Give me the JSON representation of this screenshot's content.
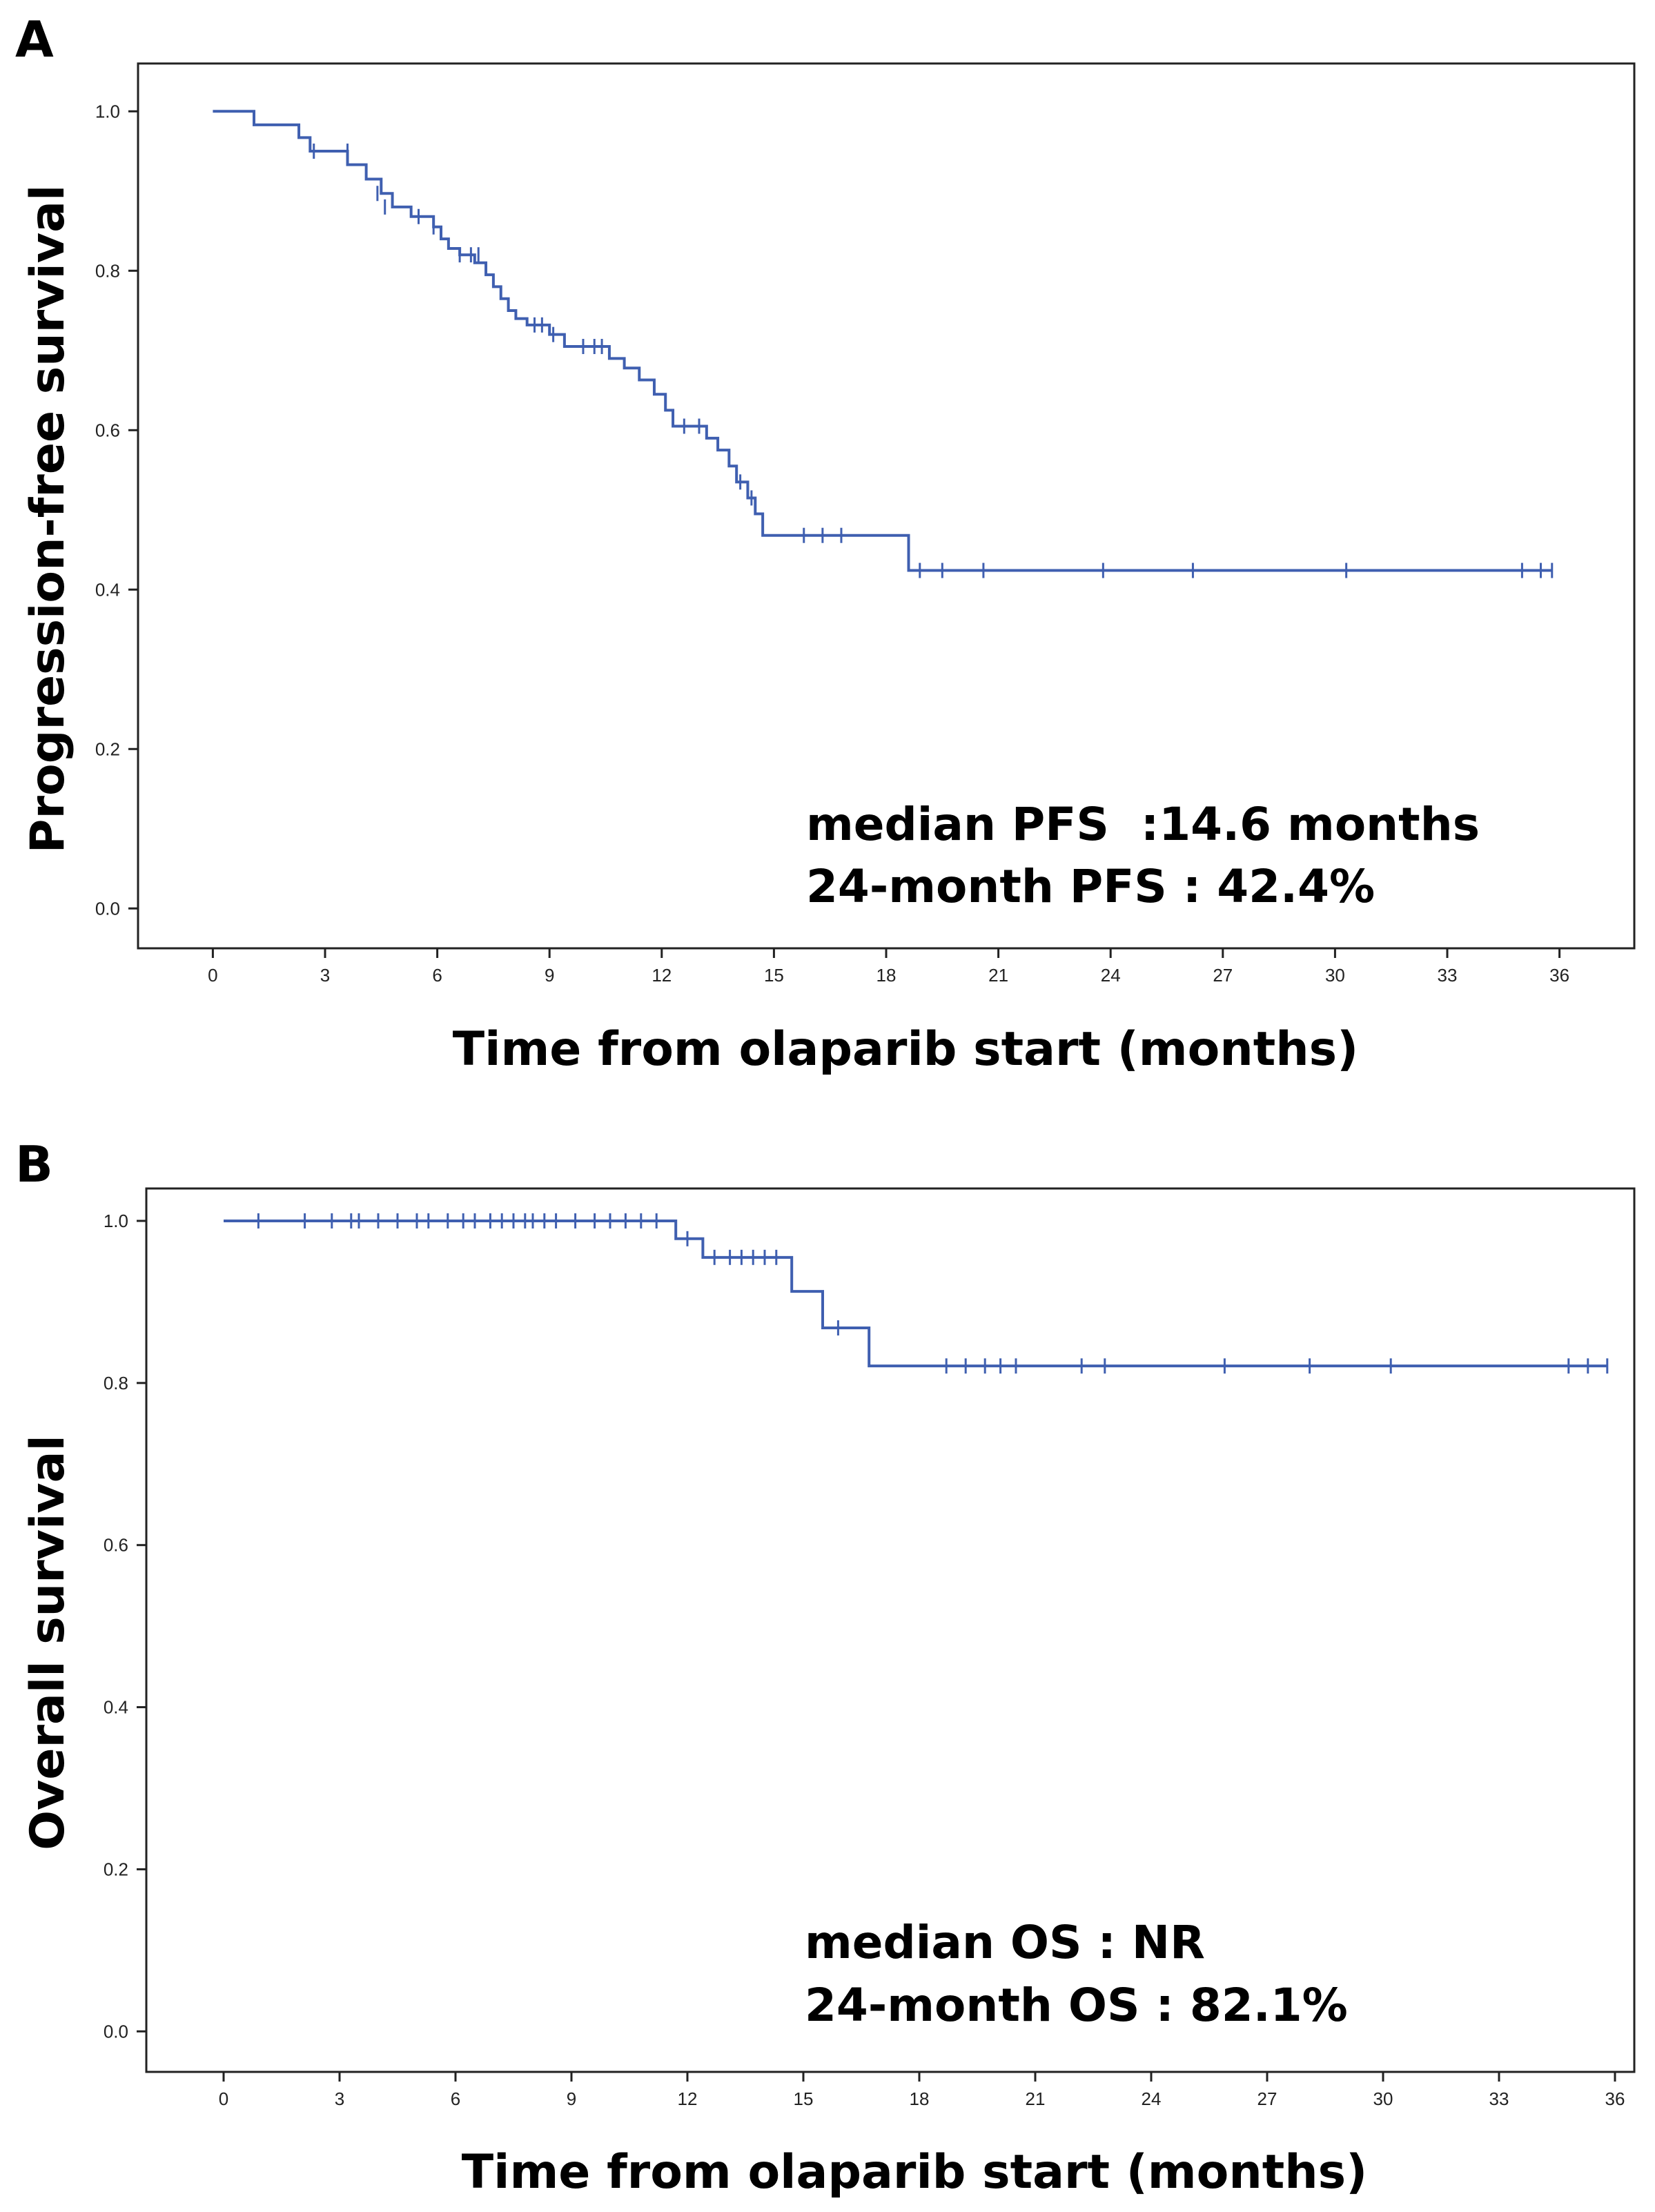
{
  "chart_data": [
    {
      "type": "line",
      "panel": "A",
      "ylabel": "Progression-free survival",
      "xlabel": "Time from olaparib start (months)",
      "xticks": [
        0,
        3,
        6,
        9,
        12,
        15,
        18,
        21,
        24,
        27,
        30,
        33,
        36
      ],
      "yticks": [
        0.0,
        0.2,
        0.4,
        0.6,
        0.8,
        1.0
      ],
      "ytick_labels": [
        "0.0",
        "0.2",
        "0.4",
        "0.6",
        "0.8",
        "1.0"
      ],
      "xlim": [
        -2,
        38
      ],
      "ylim": [
        -0.05,
        1.06
      ],
      "annotations": [
        "median PFS  :14.6 months",
        "24-month PFS : 42.4%"
      ],
      "color": "#3f5fb0",
      "series": [
        {
          "name": "Progression-free survival",
          "steps": [
            [
              0,
              1.0
            ],
            [
              1.1,
              0.983
            ],
            [
              2.3,
              0.967
            ],
            [
              2.6,
              0.95
            ],
            [
              3.6,
              0.933
            ],
            [
              4.1,
              0.915
            ],
            [
              4.5,
              0.897
            ],
            [
              4.8,
              0.88
            ],
            [
              5.3,
              0.868
            ],
            [
              5.9,
              0.855
            ],
            [
              6.1,
              0.84
            ],
            [
              6.3,
              0.828
            ],
            [
              6.6,
              0.82
            ],
            [
              7.0,
              0.81
            ],
            [
              7.3,
              0.795
            ],
            [
              7.5,
              0.78
            ],
            [
              7.7,
              0.765
            ],
            [
              7.9,
              0.75
            ],
            [
              8.1,
              0.74
            ],
            [
              8.4,
              0.732
            ],
            [
              9.0,
              0.72
            ],
            [
              9.4,
              0.705
            ],
            [
              10.6,
              0.69
            ],
            [
              11.0,
              0.678
            ],
            [
              11.4,
              0.663
            ],
            [
              11.8,
              0.645
            ],
            [
              12.1,
              0.625
            ],
            [
              12.3,
              0.605
            ],
            [
              13.2,
              0.59
            ],
            [
              13.5,
              0.575
            ],
            [
              13.8,
              0.555
            ],
            [
              14.0,
              0.535
            ],
            [
              14.3,
              0.515
            ],
            [
              14.5,
              0.495
            ],
            [
              14.7,
              0.468
            ],
            [
              18.6,
              0.424
            ]
          ],
          "end_x": 35.8,
          "censored": [
            [
              2.7,
              0.95
            ],
            [
              3.6,
              0.95
            ],
            [
              4.4,
              0.897
            ],
            [
              4.6,
              0.88
            ],
            [
              5.5,
              0.868
            ],
            [
              5.9,
              0.855
            ],
            [
              6.6,
              0.82
            ],
            [
              6.9,
              0.82
            ],
            [
              7.1,
              0.82
            ],
            [
              8.6,
              0.732
            ],
            [
              8.8,
              0.732
            ],
            [
              9.1,
              0.72
            ],
            [
              9.9,
              0.705
            ],
            [
              10.2,
              0.705
            ],
            [
              10.4,
              0.705
            ],
            [
              12.6,
              0.605
            ],
            [
              13.0,
              0.605
            ],
            [
              14.1,
              0.535
            ],
            [
              14.4,
              0.515
            ],
            [
              15.8,
              0.468
            ],
            [
              16.3,
              0.468
            ],
            [
              16.8,
              0.468
            ],
            [
              18.9,
              0.424
            ],
            [
              19.5,
              0.424
            ],
            [
              20.6,
              0.424
            ],
            [
              23.8,
              0.424
            ],
            [
              26.2,
              0.424
            ],
            [
              30.3,
              0.424
            ],
            [
              35.0,
              0.424
            ],
            [
              35.5,
              0.424
            ],
            [
              35.8,
              0.424
            ]
          ]
        }
      ]
    },
    {
      "type": "line",
      "panel": "B",
      "ylabel": "Overall survival",
      "xlabel": "Time from olaparib start (months)",
      "xticks": [
        0,
        3,
        6,
        9,
        12,
        15,
        18,
        21,
        24,
        27,
        30,
        33,
        36
      ],
      "yticks": [
        0.0,
        0.2,
        0.4,
        0.6,
        0.8,
        1.0
      ],
      "ytick_labels": [
        "0.0",
        "0.2",
        "0.4",
        "0.6",
        "0.8",
        "1.0"
      ],
      "xlim": [
        -2,
        36.5
      ],
      "ylim": [
        -0.05,
        1.04
      ],
      "annotations": [
        "median OS : NR",
        "24-month OS : 82.1%"
      ],
      "color": "#3f5fb0",
      "series": [
        {
          "name": "Overall survival",
          "steps": [
            [
              0,
              1.0
            ],
            [
              11.7,
              0.978
            ],
            [
              12.4,
              0.955
            ],
            [
              14.7,
              0.913
            ],
            [
              15.5,
              0.868
            ],
            [
              16.7,
              0.821
            ]
          ],
          "end_x": 35.8,
          "censored": [
            [
              0.9,
              1.0
            ],
            [
              2.1,
              1.0
            ],
            [
              2.8,
              1.0
            ],
            [
              3.3,
              1.0
            ],
            [
              3.5,
              1.0
            ],
            [
              4.0,
              1.0
            ],
            [
              4.5,
              1.0
            ],
            [
              5.0,
              1.0
            ],
            [
              5.3,
              1.0
            ],
            [
              5.8,
              1.0
            ],
            [
              6.2,
              1.0
            ],
            [
              6.5,
              1.0
            ],
            [
              6.9,
              1.0
            ],
            [
              7.2,
              1.0
            ],
            [
              7.5,
              1.0
            ],
            [
              7.8,
              1.0
            ],
            [
              8.0,
              1.0
            ],
            [
              8.3,
              1.0
            ],
            [
              8.6,
              1.0
            ],
            [
              9.1,
              1.0
            ],
            [
              9.6,
              1.0
            ],
            [
              10.0,
              1.0
            ],
            [
              10.4,
              1.0
            ],
            [
              10.8,
              1.0
            ],
            [
              11.2,
              1.0
            ],
            [
              12.0,
              0.978
            ],
            [
              12.7,
              0.955
            ],
            [
              13.1,
              0.955
            ],
            [
              13.4,
              0.955
            ],
            [
              13.7,
              0.955
            ],
            [
              14.0,
              0.955
            ],
            [
              14.3,
              0.955
            ],
            [
              15.9,
              0.868
            ],
            [
              18.7,
              0.821
            ],
            [
              19.2,
              0.821
            ],
            [
              19.7,
              0.821
            ],
            [
              20.1,
              0.821
            ],
            [
              20.5,
              0.821
            ],
            [
              22.2,
              0.821
            ],
            [
              22.8,
              0.821
            ],
            [
              25.9,
              0.821
            ],
            [
              28.1,
              0.821
            ],
            [
              30.2,
              0.821
            ],
            [
              34.8,
              0.821
            ],
            [
              35.3,
              0.821
            ],
            [
              35.8,
              0.821
            ]
          ]
        }
      ]
    }
  ]
}
